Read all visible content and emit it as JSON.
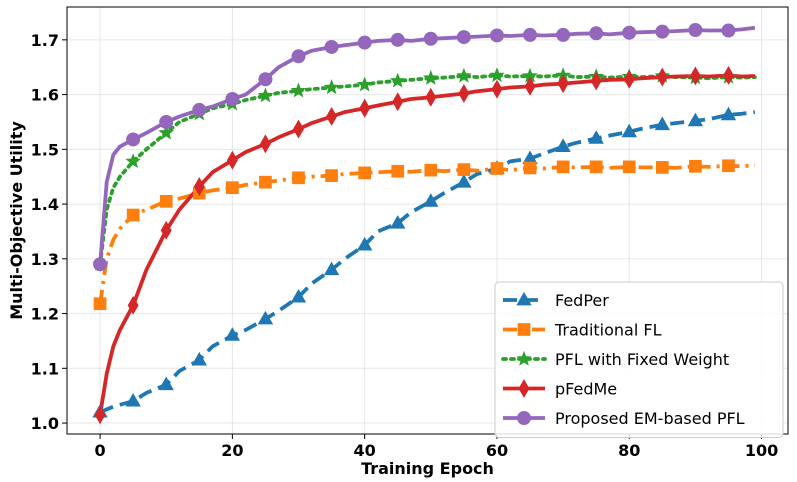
{
  "chart_data": {
    "type": "line",
    "title": "",
    "xlabel": "Training Epoch",
    "ylabel": "Multi-Objective Utility",
    "xlim": [
      -5,
      104
    ],
    "ylim": [
      0.98,
      1.76
    ],
    "xticks": [
      0,
      20,
      40,
      60,
      80,
      100
    ],
    "yticks": [
      1.0,
      1.1,
      1.2,
      1.3,
      1.4,
      1.5,
      1.6,
      1.7
    ],
    "xtick_labels": [
      "0",
      "20",
      "40",
      "60",
      "80",
      "100"
    ],
    "ytick_labels": [
      "1.0",
      "1.1",
      "1.2",
      "1.3",
      "1.4",
      "1.5",
      "1.6",
      "1.7"
    ],
    "grid": true,
    "legend_position": "lower-right",
    "series": [
      {
        "name": "FedPer",
        "color": "#1f77b4",
        "linestyle": "dashed",
        "marker": "triangle-up",
        "x": [
          0,
          2,
          5,
          7,
          10,
          12,
          15,
          17,
          20,
          22,
          25,
          27,
          30,
          32,
          35,
          37,
          40,
          42,
          45,
          47,
          50,
          52,
          55,
          57,
          60,
          62,
          65,
          67,
          70,
          72,
          75,
          77,
          80,
          82,
          85,
          87,
          90,
          92,
          95,
          97,
          99
        ],
        "y": [
          1.02,
          1.03,
          1.04,
          1.055,
          1.07,
          1.095,
          1.115,
          1.14,
          1.16,
          1.17,
          1.19,
          1.205,
          1.23,
          1.255,
          1.28,
          1.3,
          1.325,
          1.35,
          1.365,
          1.385,
          1.405,
          1.42,
          1.44,
          1.455,
          1.465,
          1.478,
          1.483,
          1.492,
          1.505,
          1.512,
          1.52,
          1.525,
          1.532,
          1.538,
          1.545,
          1.548,
          1.552,
          1.555,
          1.563,
          1.565,
          1.568
        ],
        "marker_x": [
          0,
          5,
          10,
          15,
          20,
          25,
          30,
          35,
          40,
          45,
          50,
          55,
          60,
          65,
          70,
          75,
          80,
          85,
          90,
          95
        ],
        "marker_y": [
          1.02,
          1.04,
          1.07,
          1.115,
          1.16,
          1.19,
          1.23,
          1.28,
          1.325,
          1.365,
          1.405,
          1.44,
          1.465,
          1.483,
          1.505,
          1.52,
          1.532,
          1.545,
          1.552,
          1.563
        ]
      },
      {
        "name": "Traditional FL",
        "color": "#ff7f0e",
        "linestyle": "dashdot",
        "marker": "square",
        "x": [
          0,
          1,
          2,
          3,
          5,
          7,
          10,
          12,
          15,
          17,
          20,
          22,
          25,
          27,
          30,
          32,
          35,
          37,
          40,
          42,
          45,
          47,
          50,
          52,
          55,
          57,
          60,
          62,
          65,
          67,
          70,
          72,
          75,
          77,
          80,
          82,
          85,
          87,
          90,
          92,
          95,
          97,
          99
        ],
        "y": [
          1.218,
          1.3,
          1.335,
          1.355,
          1.38,
          1.39,
          1.405,
          1.41,
          1.42,
          1.425,
          1.43,
          1.435,
          1.44,
          1.443,
          1.448,
          1.45,
          1.452,
          1.455,
          1.457,
          1.458,
          1.46,
          1.459,
          1.462,
          1.46,
          1.463,
          1.461,
          1.465,
          1.462,
          1.466,
          1.465,
          1.468,
          1.467,
          1.468,
          1.466,
          1.468,
          1.467,
          1.467,
          1.466,
          1.469,
          1.468,
          1.47,
          1.469,
          1.471
        ],
        "marker_x": [
          0,
          5,
          10,
          15,
          20,
          25,
          30,
          35,
          40,
          45,
          50,
          55,
          60,
          65,
          70,
          75,
          80,
          85,
          90,
          95
        ],
        "marker_y": [
          1.218,
          1.38,
          1.405,
          1.42,
          1.43,
          1.44,
          1.448,
          1.452,
          1.457,
          1.46,
          1.462,
          1.463,
          1.465,
          1.466,
          1.468,
          1.468,
          1.468,
          1.467,
          1.469,
          1.47
        ]
      },
      {
        "name": "PFL with Fixed Weight",
        "color": "#2ca02c",
        "linestyle": "dotted",
        "marker": "star",
        "x": [
          0,
          1,
          2,
          3,
          5,
          7,
          10,
          12,
          15,
          17,
          20,
          22,
          25,
          27,
          30,
          32,
          35,
          37,
          40,
          42,
          45,
          47,
          50,
          52,
          55,
          57,
          60,
          62,
          65,
          67,
          70,
          72,
          75,
          77,
          80,
          82,
          85,
          87,
          90,
          92,
          95,
          97,
          99
        ],
        "y": [
          1.29,
          1.39,
          1.43,
          1.45,
          1.478,
          1.5,
          1.53,
          1.55,
          1.565,
          1.575,
          1.583,
          1.59,
          1.598,
          1.603,
          1.607,
          1.61,
          1.613,
          1.615,
          1.618,
          1.622,
          1.625,
          1.627,
          1.63,
          1.631,
          1.634,
          1.632,
          1.635,
          1.633,
          1.634,
          1.633,
          1.635,
          1.632,
          1.633,
          1.631,
          1.633,
          1.632,
          1.634,
          1.632,
          1.631,
          1.63,
          1.632,
          1.631,
          1.632
        ],
        "marker_x": [
          0,
          5,
          10,
          15,
          20,
          25,
          30,
          35,
          40,
          45,
          50,
          55,
          60,
          65,
          70,
          75,
          80,
          85,
          90,
          95
        ],
        "marker_y": [
          1.29,
          1.478,
          1.53,
          1.565,
          1.583,
          1.598,
          1.607,
          1.613,
          1.618,
          1.625,
          1.63,
          1.634,
          1.635,
          1.634,
          1.635,
          1.633,
          1.633,
          1.634,
          1.631,
          1.632
        ]
      },
      {
        "name": "pFedMe",
        "color": "#d62728",
        "linestyle": "solid",
        "marker": "diamond",
        "x": [
          0,
          1,
          2,
          3,
          5,
          7,
          10,
          12,
          15,
          17,
          20,
          22,
          25,
          27,
          30,
          32,
          35,
          37,
          40,
          42,
          45,
          47,
          50,
          52,
          55,
          57,
          60,
          62,
          65,
          67,
          70,
          72,
          75,
          77,
          80,
          82,
          85,
          87,
          90,
          92,
          95,
          97,
          99
        ],
        "y": [
          1.015,
          1.09,
          1.14,
          1.17,
          1.215,
          1.28,
          1.352,
          1.39,
          1.432,
          1.458,
          1.48,
          1.495,
          1.51,
          1.522,
          1.537,
          1.548,
          1.56,
          1.568,
          1.575,
          1.58,
          1.587,
          1.592,
          1.595,
          1.598,
          1.602,
          1.606,
          1.61,
          1.613,
          1.615,
          1.618,
          1.62,
          1.622,
          1.625,
          1.627,
          1.628,
          1.63,
          1.632,
          1.633,
          1.634,
          1.633,
          1.635,
          1.633,
          1.634
        ],
        "marker_x": [
          0,
          5,
          10,
          15,
          20,
          25,
          30,
          35,
          40,
          45,
          50,
          55,
          60,
          65,
          70,
          75,
          80,
          85,
          90,
          95
        ],
        "marker_y": [
          1.015,
          1.215,
          1.352,
          1.432,
          1.48,
          1.51,
          1.537,
          1.56,
          1.575,
          1.587,
          1.595,
          1.602,
          1.61,
          1.615,
          1.62,
          1.625,
          1.628,
          1.632,
          1.634,
          1.635
        ]
      },
      {
        "name": "Proposed EM-based PFL",
        "color": "#9467bd",
        "linestyle": "solid",
        "marker": "circle",
        "x": [
          0,
          1,
          2,
          3,
          5,
          7,
          10,
          12,
          15,
          17,
          20,
          22,
          25,
          27,
          30,
          32,
          35,
          37,
          40,
          42,
          45,
          47,
          50,
          52,
          55,
          57,
          60,
          62,
          65,
          67,
          70,
          72,
          75,
          77,
          80,
          82,
          85,
          87,
          90,
          92,
          95,
          97,
          99
        ],
        "y": [
          1.29,
          1.44,
          1.49,
          1.505,
          1.518,
          1.53,
          1.55,
          1.56,
          1.572,
          1.578,
          1.592,
          1.6,
          1.628,
          1.65,
          1.67,
          1.68,
          1.687,
          1.69,
          1.695,
          1.698,
          1.7,
          1.698,
          1.702,
          1.703,
          1.705,
          1.706,
          1.708,
          1.707,
          1.709,
          1.708,
          1.709,
          1.711,
          1.712,
          1.71,
          1.713,
          1.714,
          1.715,
          1.716,
          1.718,
          1.717,
          1.717,
          1.719,
          1.722
        ],
        "marker_x": [
          0,
          5,
          10,
          15,
          20,
          25,
          30,
          35,
          40,
          45,
          50,
          55,
          60,
          65,
          70,
          75,
          80,
          85,
          90,
          95
        ],
        "marker_y": [
          1.29,
          1.518,
          1.55,
          1.572,
          1.592,
          1.628,
          1.67,
          1.687,
          1.695,
          1.7,
          1.702,
          1.705,
          1.708,
          1.709,
          1.709,
          1.712,
          1.713,
          1.715,
          1.718,
          1.717
        ]
      }
    ]
  }
}
